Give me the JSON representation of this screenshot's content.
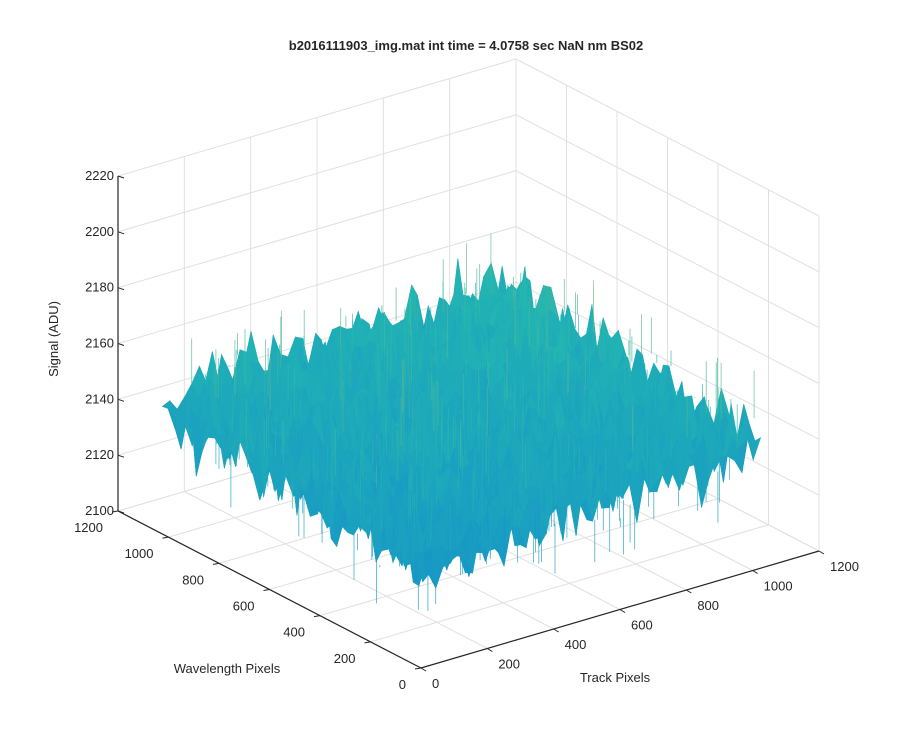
{
  "chart_data": {
    "type": "surface",
    "title": "b2016111903_img.mat int time = 4.0758 sec  NaN nm BS02",
    "xlabel": "Track Pixels",
    "ylabel": "Wavelength Pixels",
    "zlabel": "Signal (ADU)",
    "x_ticks": [
      "0",
      "200",
      "400",
      "600",
      "800",
      "1000",
      "1200"
    ],
    "y_ticks": [
      "0",
      "200",
      "400",
      "600",
      "800",
      "1000",
      "1200"
    ],
    "z_ticks": [
      "2100",
      "2120",
      "2140",
      "2160",
      "2180",
      "2200",
      "2220"
    ],
    "xlim": [
      0,
      1200
    ],
    "ylim": [
      0,
      1200
    ],
    "zlim": [
      2100,
      2220
    ],
    "grid": true,
    "colormap": "parula",
    "data_extent": {
      "x": [
        0,
        1024
      ],
      "y": [
        0,
        1024
      ]
    },
    "signal_mean": 2145,
    "signal_noise_range": [
      2110,
      2205
    ],
    "colors": {
      "low": "#0f7fd6",
      "mid": "#22b5b2",
      "high": "#e3c43a",
      "axis": "#262626",
      "grid": "#e0e0e0"
    }
  }
}
